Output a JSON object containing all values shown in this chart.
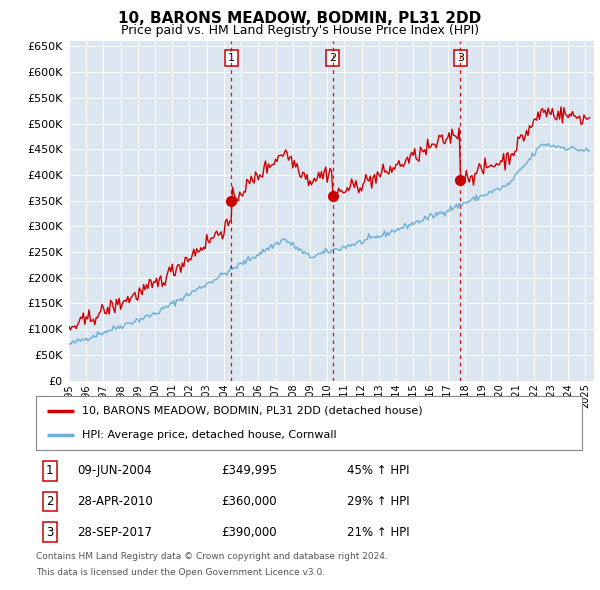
{
  "title": "10, BARONS MEADOW, BODMIN, PL31 2DD",
  "subtitle": "Price paid vs. HM Land Registry's House Price Index (HPI)",
  "bg_color": "#dce6f1",
  "sale1": {
    "date": "09-JUN-2004",
    "price": 349995,
    "pct": "45%",
    "label": "1",
    "t": 2004.44
  },
  "sale2": {
    "date": "28-APR-2010",
    "price": 360000,
    "pct": "29%",
    "label": "2",
    "t": 2010.32
  },
  "sale3": {
    "date": "28-SEP-2017",
    "price": 390000,
    "pct": "21%",
    "label": "3",
    "t": 2017.74
  },
  "legend_line1": "10, BARONS MEADOW, BODMIN, PL31 2DD (detached house)",
  "legend_line2": "HPI: Average price, detached house, Cornwall",
  "footer1": "Contains HM Land Registry data © Crown copyright and database right 2024.",
  "footer2": "This data is licensed under the Open Government Licence v3.0.",
  "hpi_color": "#6baed6",
  "price_color": "#cc0000",
  "vline_color": "#cc0000",
  "ylim_max": 660000,
  "xlim_start": 1995.0,
  "xlim_end": 2025.5
}
